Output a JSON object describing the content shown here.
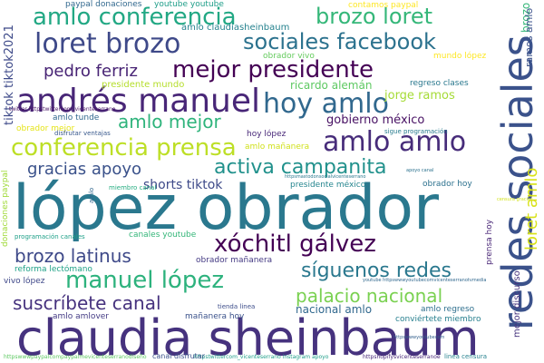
{
  "words": [
    {
      "text": "claudia sheinbaum",
      "color": "#46327e"
    },
    {
      "text": "lópez obrador",
      "color": "#2a788e"
    },
    {
      "text": "redes sociales",
      "color": "#3b528b"
    },
    {
      "text": "andrés manuel",
      "color": "#482677"
    },
    {
      "text": "amlo conferencia",
      "color": "#22a884"
    },
    {
      "text": "loret brozo",
      "color": "#3e4989"
    },
    {
      "text": "brozo loret",
      "color": "#35b779"
    },
    {
      "text": "sociales facebook",
      "color": "#2c728e"
    },
    {
      "text": "mejor presidente",
      "color": "#440154"
    },
    {
      "text": "pedro ferriz",
      "color": "#482475"
    },
    {
      "text": "hoy amlo",
      "color": "#31688e"
    },
    {
      "text": "amlo amlo",
      "color": "#472c7a"
    },
    {
      "text": "conferencia prensa",
      "color": "#bddf26"
    },
    {
      "text": "amlo mejor",
      "color": "#2fb47c"
    },
    {
      "text": "activa campanita",
      "color": "#21918c"
    },
    {
      "text": "gracias apoyo",
      "color": "#3b528b"
    },
    {
      "text": "shorts tiktok",
      "color": "#3e4a89"
    },
    {
      "text": "xóchitl gálvez",
      "color": "#440154"
    },
    {
      "text": "brozo latinus",
      "color": "#3e4989"
    },
    {
      "text": "manuel lópez",
      "color": "#2db27d"
    },
    {
      "text": "síguenos redes",
      "color": "#2a788e"
    },
    {
      "text": "suscríbete canal",
      "color": "#46327e"
    },
    {
      "text": "palacio nacional",
      "color": "#7ad151"
    },
    {
      "text": "loret amlo",
      "color": "#d8e219"
    },
    {
      "text": "jorge ramos",
      "color": "#a5db36"
    },
    {
      "text": "gobierno méxico",
      "color": "#471063"
    },
    {
      "text": "ricardo alemán",
      "color": "#5ec962"
    },
    {
      "text": "amlo claudiasheinbaum",
      "color": "#26828e"
    },
    {
      "text": "presidente mundo",
      "color": "#b5de2b"
    },
    {
      "text": "tiktok tiktok2021",
      "color": "#3e4a89"
    },
    {
      "text": "paypal donaciones",
      "color": "#31688e"
    },
    {
      "text": "youtube youtube",
      "color": "#1f9e89"
    },
    {
      "text": "contamos paypal",
      "color": "#fde725"
    },
    {
      "text": "brozo",
      "color": "#35b779"
    },
    {
      "text": "ramos amlo",
      "color": "#3b528b"
    },
    {
      "text": "obrador vivo",
      "color": "#65cb5e"
    },
    {
      "text": "mundo lópez",
      "color": "#fde725"
    },
    {
      "text": "regreso clases",
      "color": "#2a788e"
    },
    {
      "text": "amlo tunde",
      "color": "#31688e"
    },
    {
      "text": "obrador mejor",
      "color": "#e5e419"
    },
    {
      "text": "disfrutar ventajas",
      "color": "#38588c"
    },
    {
      "text": "sigue programación",
      "color": "#287c8e"
    },
    {
      "text": "hoy lópez",
      "color": "#482878"
    },
    {
      "text": "amlo mañanera",
      "color": "#d0e11c"
    },
    {
      "text": "presidente méxico",
      "color": "#25858e"
    },
    {
      "text": "obrador hoy",
      "color": "#2c718e"
    },
    {
      "text": "mejor discurso",
      "color": "#46337e"
    },
    {
      "text": "canales youtube",
      "color": "#34b679"
    },
    {
      "text": "obrador mañanera",
      "color": "#443a83"
    },
    {
      "text": "programación canales",
      "color": "#1fa088"
    },
    {
      "text": "donaciones paypal",
      "color": "#a0da39"
    },
    {
      "text": "reforma lectómano",
      "color": "#1fa187"
    },
    {
      "text": "vivo lópez",
      "color": "#3f4889"
    },
    {
      "text": "prensa hoy",
      "color": "#482576"
    },
    {
      "text": "nacional amlo",
      "color": "#31688e"
    },
    {
      "text": "amlo regreso",
      "color": "#2e6f8e"
    },
    {
      "text": "conviértete miembro",
      "color": "#277f8e"
    },
    {
      "text": "mañanera hoy",
      "color": "#3b528b"
    },
    {
      "text": "amlo amlover",
      "color": "#443b84"
    },
    {
      "text": "tienda linea",
      "color": "#3d4d8a"
    },
    {
      "text": "miembro canal",
      "color": "#26ad81"
    },
    {
      "text": "twitter httpstwittercom_vicenteserrano",
      "color": "#471365"
    },
    {
      "text": "httpsmastodonsocialvicenteserrano",
      "color": "#2a788e"
    },
    {
      "text": "youtube httpswwwyoutubecomvicenteserranotvmedia",
      "color": "#31688e"
    },
    {
      "text": "httpswwwpaypalcompaypalmevicenteserranodiseño",
      "color": "#5ec962"
    },
    {
      "text": "httpstwittercom_vicenteserrano instagram apoyo",
      "color": "#1f9e89"
    },
    {
      "text": "httpshopifysvicenteserranoe",
      "color": "#482878"
    },
    {
      "text": "linea censura",
      "color": "#26828e"
    },
    {
      "text": "canal disfrutar",
      "color": "#3b528b"
    },
    {
      "text": "censura gracias",
      "color": "#d2e21b"
    },
    {
      "text": "httpswwwyoutubecom",
      "color": "#34618d"
    },
    {
      "text": "amlo",
      "color": "#31688e"
    },
    {
      "text": "apoyo canal",
      "color": "#2c728e"
    }
  ]
}
